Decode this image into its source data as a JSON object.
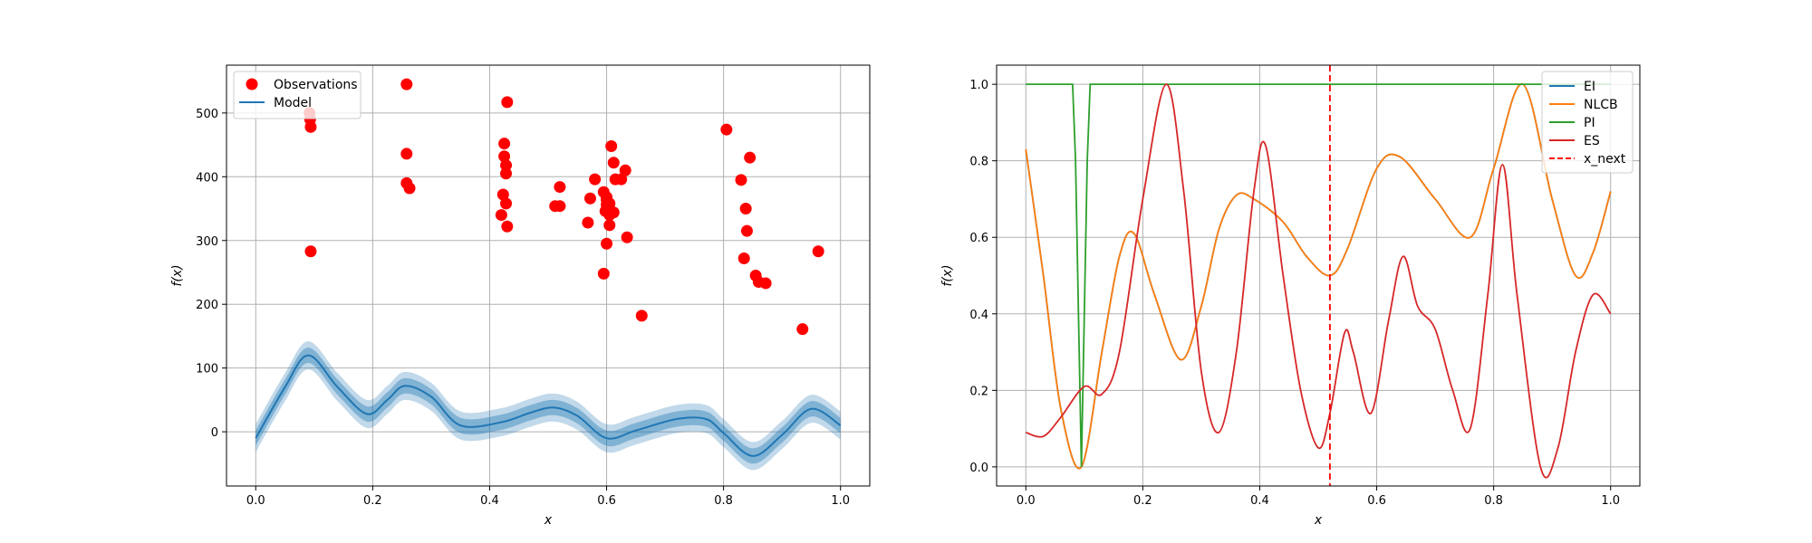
{
  "chart_data": [
    {
      "type": "scatter",
      "xlabel": "x",
      "ylabel": "f(x)",
      "xlim": [
        -0.05,
        1.05
      ],
      "ylim": [
        -85,
        575
      ],
      "xticks": [
        "0.0",
        "0.2",
        "0.4",
        "0.6",
        "0.8",
        "1.0"
      ],
      "xtick_values": [
        0.0,
        0.2,
        0.4,
        0.6,
        0.8,
        1.0
      ],
      "yticks": [
        "0",
        "100",
        "200",
        "300",
        "400",
        "500"
      ],
      "ytick_values": [
        0,
        100,
        200,
        300,
        400,
        500
      ],
      "grid": true,
      "legend_position": "upper-left",
      "legend": [
        {
          "label": "Observations",
          "marker": "circle",
          "color": "#ff0000"
        },
        {
          "label": "Model",
          "marker": "line",
          "color": "#1f77b4"
        }
      ],
      "observations": {
        "x": [
          0.092,
          0.093,
          0.094,
          0.094,
          0.258,
          0.258,
          0.258,
          0.263,
          0.43,
          0.425,
          0.425,
          0.428,
          0.428,
          0.423,
          0.42,
          0.428,
          0.43,
          0.52,
          0.52,
          0.512,
          0.572,
          0.58,
          0.568,
          0.6,
          0.608,
          0.612,
          0.632,
          0.625,
          0.615,
          0.595,
          0.6,
          0.605,
          0.598,
          0.612,
          0.605,
          0.6,
          0.605,
          0.595,
          0.635,
          0.6,
          0.66,
          0.805,
          0.845,
          0.83,
          0.838,
          0.84,
          0.835,
          0.855,
          0.86,
          0.872,
          0.935,
          0.962
        ],
        "y": [
          500,
          490,
          478,
          283,
          545,
          436,
          390,
          382,
          517,
          452,
          432,
          418,
          405,
          372,
          340,
          358,
          322,
          384,
          354,
          354,
          366,
          396,
          328,
          364,
          448,
          422,
          410,
          396,
          396,
          376,
          368,
          358,
          346,
          344,
          340,
          356,
          324,
          248,
          305,
          295,
          182,
          474,
          430,
          395,
          350,
          315,
          272,
          245,
          235,
          233,
          161,
          283
        ]
      },
      "model": {
        "x": [
          0.0,
          0.05,
          0.09,
          0.14,
          0.19,
          0.225,
          0.255,
          0.3,
          0.35,
          0.42,
          0.47,
          0.51,
          0.55,
          0.6,
          0.65,
          0.72,
          0.77,
          0.8,
          0.85,
          0.9,
          0.95,
          1.0
        ],
        "mean": [
          -10,
          70,
          120,
          70,
          28,
          50,
          72,
          55,
          10,
          15,
          30,
          38,
          25,
          -10,
          2,
          20,
          20,
          -2,
          -38,
          -5,
          36,
          10
        ],
        "band_inner": 12,
        "band_outer": 22
      }
    },
    {
      "type": "line",
      "xlabel": "x",
      "ylabel": "f(x)",
      "xlim": [
        -0.05,
        1.05
      ],
      "ylim": [
        -0.05,
        1.05
      ],
      "xticks": [
        "0.0",
        "0.2",
        "0.4",
        "0.6",
        "0.8",
        "1.0"
      ],
      "xtick_values": [
        0.0,
        0.2,
        0.4,
        0.6,
        0.8,
        1.0
      ],
      "yticks": [
        "0.0",
        "0.2",
        "0.4",
        "0.6",
        "0.8",
        "1.0"
      ],
      "ytick_values": [
        0.0,
        0.2,
        0.4,
        0.6,
        0.8,
        1.0
      ],
      "grid": true,
      "legend_position": "upper-right",
      "x_next": 0.52,
      "series": [
        {
          "name": "EI",
          "color": "#1f77b4",
          "x": [
            0.0,
            0.03,
            0.06,
            0.095,
            0.13,
            0.16,
            0.185,
            0.22,
            0.265,
            0.3,
            0.33,
            0.36,
            0.39,
            0.44,
            0.48,
            0.52,
            0.55,
            0.6,
            0.64,
            0.7,
            0.76,
            0.8,
            0.85,
            0.9,
            0.94,
            0.97,
            1.0
          ],
          "y": [
            0.83,
            0.5,
            0.15,
            0.0,
            0.3,
            0.55,
            0.61,
            0.45,
            0.28,
            0.42,
            0.62,
            0.71,
            0.7,
            0.64,
            0.55,
            0.5,
            0.57,
            0.78,
            0.81,
            0.7,
            0.6,
            0.78,
            1.0,
            0.7,
            0.5,
            0.56,
            0.72
          ]
        },
        {
          "name": "NLCB",
          "color": "#ff7f0e",
          "x": [
            0.0,
            0.03,
            0.06,
            0.095,
            0.13,
            0.16,
            0.185,
            0.22,
            0.265,
            0.3,
            0.33,
            0.36,
            0.39,
            0.44,
            0.48,
            0.52,
            0.55,
            0.6,
            0.64,
            0.7,
            0.76,
            0.8,
            0.85,
            0.9,
            0.94,
            0.97,
            1.0
          ],
          "y": [
            0.83,
            0.5,
            0.15,
            0.0,
            0.3,
            0.55,
            0.61,
            0.45,
            0.28,
            0.42,
            0.62,
            0.71,
            0.7,
            0.64,
            0.55,
            0.5,
            0.57,
            0.78,
            0.81,
            0.7,
            0.6,
            0.78,
            1.0,
            0.7,
            0.5,
            0.56,
            0.72
          ]
        },
        {
          "name": "PI",
          "color": "#2ca02c",
          "x": [
            0.0,
            0.08,
            0.085,
            0.095,
            0.105,
            0.11,
            1.0
          ],
          "y": [
            1.0,
            1.0,
            0.8,
            0.0,
            0.8,
            1.0,
            1.0
          ]
        },
        {
          "name": "ES",
          "color": "#d62728",
          "x": [
            0.0,
            0.03,
            0.06,
            0.1,
            0.13,
            0.16,
            0.2,
            0.24,
            0.27,
            0.3,
            0.33,
            0.36,
            0.39,
            0.41,
            0.44,
            0.47,
            0.5,
            0.52,
            0.545,
            0.56,
            0.59,
            0.62,
            0.645,
            0.67,
            0.7,
            0.73,
            0.76,
            0.79,
            0.815,
            0.84,
            0.88,
            0.91,
            0.94,
            0.97,
            1.0
          ],
          "y": [
            0.09,
            0.08,
            0.13,
            0.21,
            0.19,
            0.3,
            0.7,
            1.0,
            0.72,
            0.25,
            0.09,
            0.3,
            0.72,
            0.84,
            0.5,
            0.2,
            0.05,
            0.14,
            0.35,
            0.3,
            0.14,
            0.38,
            0.55,
            0.42,
            0.36,
            0.2,
            0.1,
            0.45,
            0.79,
            0.45,
            0.0,
            0.05,
            0.3,
            0.45,
            0.4
          ]
        }
      ],
      "legend": [
        {
          "label": "EI",
          "color": "#1f77b4",
          "style": "solid"
        },
        {
          "label": "NLCB",
          "color": "#ff7f0e",
          "style": "solid"
        },
        {
          "label": "PI",
          "color": "#2ca02c",
          "style": "solid"
        },
        {
          "label": "ES",
          "color": "#d62728",
          "style": "solid"
        },
        {
          "label": "x_next",
          "color": "#ff0000",
          "style": "dashed"
        }
      ]
    }
  ]
}
